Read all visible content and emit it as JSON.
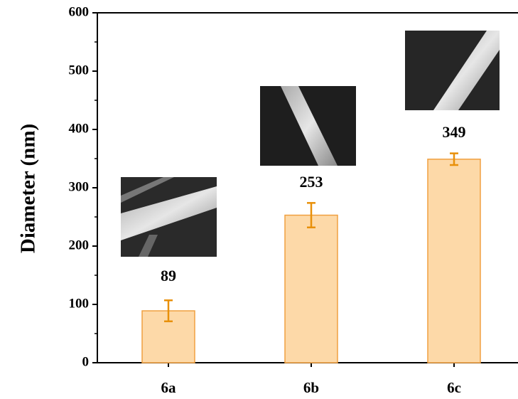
{
  "chart_data": {
    "type": "bar",
    "y_label": "Diameter (nm)",
    "categories": [
      "6a",
      "6b",
      "6c"
    ],
    "values": [
      89,
      253,
      349
    ],
    "errors": [
      18,
      21,
      10
    ],
    "color": "#fdd9a8",
    "edge_color": "#f0a040",
    "error_color": "#e8900a",
    "ylim": [
      0,
      600
    ],
    "yticks": [
      0,
      100,
      200,
      300,
      400,
      500,
      600
    ],
    "grid": false
  }
}
